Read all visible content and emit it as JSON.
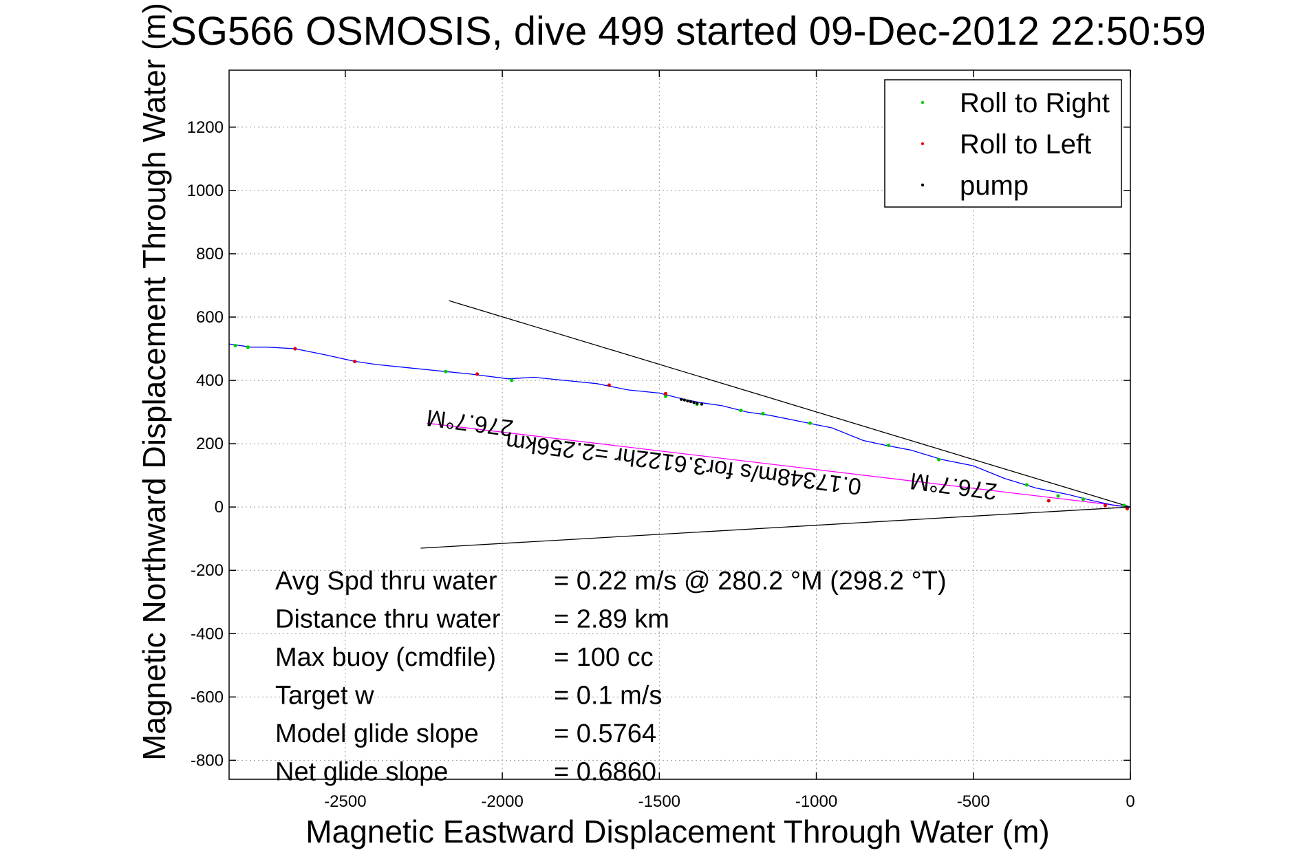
{
  "chart_data": {
    "type": "line",
    "title": "SG566 OSMOSIS, dive 499 started 09-Dec-2012 22:50:59",
    "xlabel": "Magnetic Eastward Displacement Through Water (m)",
    "ylabel": "Magnetic Northward Displacement Through Water (m)",
    "xlim": [
      -2870,
      0
    ],
    "ylim": [
      -860,
      1380
    ],
    "xticks": [
      -2500,
      -2000,
      -1500,
      -1000,
      -500,
      0
    ],
    "yticks": [
      -800,
      -600,
      -400,
      -200,
      0,
      200,
      400,
      600,
      800,
      1000,
      1200
    ],
    "grid": true,
    "legend": {
      "position": "top-right",
      "entries": [
        {
          "label": "Roll to Right",
          "color": "#00cc00"
        },
        {
          "label": "Roll to Left",
          "color": "#ff0000"
        },
        {
          "label": "pump",
          "color": "#000000"
        }
      ]
    },
    "track": {
      "color": "#0000ff",
      "x": [
        0,
        -50,
        -120,
        -200,
        -300,
        -400,
        -500,
        -600,
        -700,
        -780,
        -850,
        -950,
        -1050,
        -1150,
        -1220,
        -1300,
        -1370,
        -1420,
        -1500,
        -1600,
        -1700,
        -1800,
        -1900,
        -1980,
        -2100,
        -2200,
        -2300,
        -2400,
        -2470,
        -2560,
        -2660,
        -2750,
        -2800,
        -2870
      ],
      "y": [
        0,
        5,
        20,
        40,
        60,
        90,
        130,
        150,
        180,
        195,
        210,
        250,
        270,
        290,
        300,
        320,
        330,
        340,
        360,
        370,
        390,
        400,
        410,
        405,
        420,
        430,
        440,
        450,
        460,
        480,
        500,
        505,
        505,
        515
      ]
    },
    "roll_right_points": {
      "x": [
        -20,
        -150,
        -230,
        -330,
        -610,
        -770,
        -1020,
        -1170,
        -1240,
        -1380,
        -1480,
        -1970,
        -2180,
        -2810,
        -2850
      ],
      "y": [
        5,
        25,
        35,
        70,
        150,
        195,
        265,
        295,
        305,
        325,
        350,
        400,
        428,
        505,
        510
      ]
    },
    "roll_left_points": {
      "x": [
        -10,
        -80,
        -260,
        -1480,
        -1660,
        -2080,
        -2470,
        -2660
      ],
      "y": [
        -5,
        5,
        20,
        358,
        385,
        420,
        460,
        500
      ]
    },
    "pump_points": {
      "x": [
        -1365,
        -1380,
        -1390,
        -1400,
        -1410,
        -1420,
        -1430
      ],
      "y": [
        325,
        328,
        330,
        333,
        335,
        338,
        340
      ]
    },
    "lines": [
      {
        "name": "black-line-upper",
        "color": "#000000",
        "x": [
          0,
          -2170
        ],
        "y": [
          0,
          652
        ]
      },
      {
        "name": "black-line-lower",
        "color": "#000000",
        "x": [
          0,
          -2260
        ],
        "y": [
          0,
          -130
        ]
      },
      {
        "name": "magenta-line",
        "color": "#ff00ff",
        "x": [
          0,
          -2240
        ],
        "y": [
          0,
          265
        ]
      }
    ],
    "rotated_labels": [
      {
        "text": "276.7°M",
        "x": -2100,
        "y": 290
      },
      {
        "text": "276.7°M",
        "x": -560,
        "y": 90
      },
      {
        "text": "0.17348m/s for3.6122hr =2.256km",
        "x": -1420,
        "y": 160
      }
    ],
    "annotations": [
      {
        "label": "Avg Spd thru water",
        "value": "=  0.22 m/s @ 280.2 °M (298.2 °T)"
      },
      {
        "label": "Distance thru water",
        "value": "=  2.89 km"
      },
      {
        "label": "Max buoy (cmdfile)",
        "value": "= 100 cc"
      },
      {
        "label": "Target w",
        "value": "= 0.1 m/s"
      },
      {
        "label": "Model glide slope",
        "value": "= 0.5764"
      },
      {
        "label": "Net glide slope",
        "value": "= 0.6860"
      }
    ]
  }
}
